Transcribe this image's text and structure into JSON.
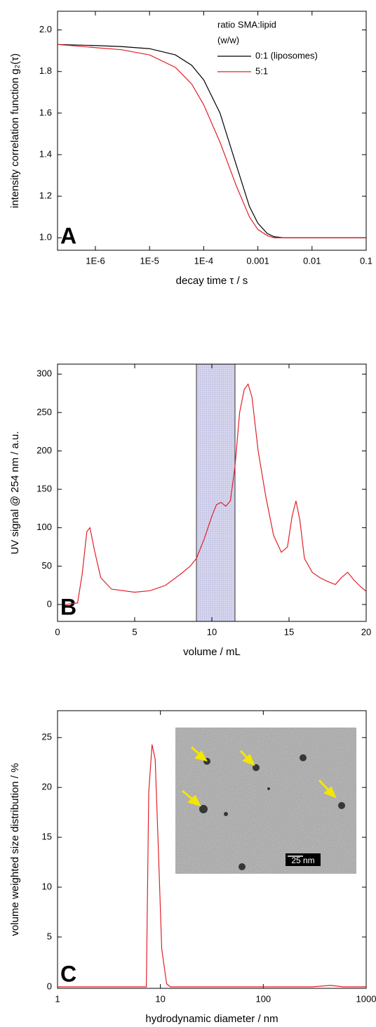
{
  "chart_data": [
    {
      "type": "line",
      "panel_label": "A",
      "xscale": "log",
      "x_label": "decay time τ / s",
      "y_label": "intensity correlation function g₂(τ)",
      "xlim": [
        2e-07,
        0.1
      ],
      "ylim": [
        0.94,
        2.09
      ],
      "xticks": [
        {
          "value": 1e-06,
          "label": "1E-6"
        },
        {
          "value": 1e-05,
          "label": "1E-5"
        },
        {
          "value": 0.0001,
          "label": "1E-4"
        },
        0.001,
        0.01,
        0.1
      ],
      "yticks": [
        {
          "value": 1,
          "label": "1.0"
        },
        1.2,
        1.4,
        1.6,
        1.8,
        {
          "value": 2,
          "label": "2.0"
        }
      ],
      "legend_title": [
        "ratio SMA:lipid",
        "(w/w)"
      ],
      "x": [
        2e-07,
        1e-06,
        3e-06,
        1e-05,
        3e-05,
        6e-05,
        0.0001,
        0.0002,
        0.0004,
        0.0007,
        0.001,
        0.0015,
        0.002,
        0.003,
        0.01,
        0.1
      ],
      "series": [
        {
          "name": "0:1 (liposomes)",
          "color": "#000000",
          "values": [
            1.93,
            1.925,
            1.92,
            1.91,
            1.88,
            1.83,
            1.76,
            1.6,
            1.35,
            1.15,
            1.07,
            1.02,
            1.005,
            1.0,
            1.0,
            1.0
          ]
        },
        {
          "name": "5:1",
          "color": "#e0202a",
          "values": [
            1.93,
            1.915,
            1.905,
            1.88,
            1.82,
            1.74,
            1.64,
            1.46,
            1.25,
            1.1,
            1.04,
            1.01,
            1.0,
            1.0,
            1.0,
            1.0
          ]
        }
      ]
    },
    {
      "type": "line",
      "panel_label": "B",
      "x_label": "volume / mL",
      "y_label": "UV signal @ 254 nm / a.u.",
      "xlim": [
        0,
        20
      ],
      "ylim": [
        -22,
        313
      ],
      "xticks": [
        0,
        5,
        10,
        15,
        20
      ],
      "yticks": [
        0,
        50,
        100,
        150,
        200,
        250,
        300
      ],
      "highlight_x": [
        9,
        11.5
      ],
      "x": [
        0.5,
        1.3,
        1.6,
        1.9,
        2.1,
        2.4,
        2.8,
        3.5,
        5,
        6,
        7,
        8,
        8.6,
        9,
        9.5,
        10,
        10.3,
        10.6,
        10.9,
        11.2,
        11.5,
        11.8,
        12.1,
        12.35,
        12.6,
        13,
        13.5,
        14,
        14.5,
        14.9,
        15.2,
        15.45,
        15.7,
        16,
        16.5,
        17,
        17.5,
        18,
        18.4,
        18.8,
        19.2,
        19.6,
        20
      ],
      "color": "#e0202a",
      "values": [
        0,
        2,
        40,
        95,
        100,
        70,
        35,
        20,
        16,
        18,
        25,
        40,
        50,
        60,
        85,
        115,
        130,
        133,
        128,
        135,
        180,
        250,
        280,
        287,
        270,
        200,
        140,
        90,
        68,
        75,
        115,
        135,
        110,
        60,
        42,
        35,
        30,
        26,
        35,
        42,
        32,
        24,
        17
      ]
    },
    {
      "type": "line",
      "panel_label": "C",
      "xscale": "log",
      "x_label": "hydrodynamic diameter / nm",
      "y_label": "volume weighted size distribution / %",
      "xlim": [
        1,
        1000
      ],
      "ylim": [
        -0.15,
        27.7
      ],
      "xticks": [
        1,
        10,
        100,
        1000
      ],
      "yticks": [
        0,
        5,
        10,
        15,
        20,
        25
      ],
      "inset_scalebar_label": "25 nm",
      "x": [
        1,
        7.3,
        7.7,
        8.3,
        8.9,
        9.5,
        10.3,
        11.5,
        12.5,
        13.5,
        100,
        300,
        450,
        600,
        1000
      ],
      "color": "#e0202a",
      "values": [
        0,
        0,
        19.5,
        24.3,
        22.8,
        14.5,
        3.8,
        0.3,
        0,
        0,
        0,
        0,
        0.15,
        0,
        0
      ]
    }
  ]
}
